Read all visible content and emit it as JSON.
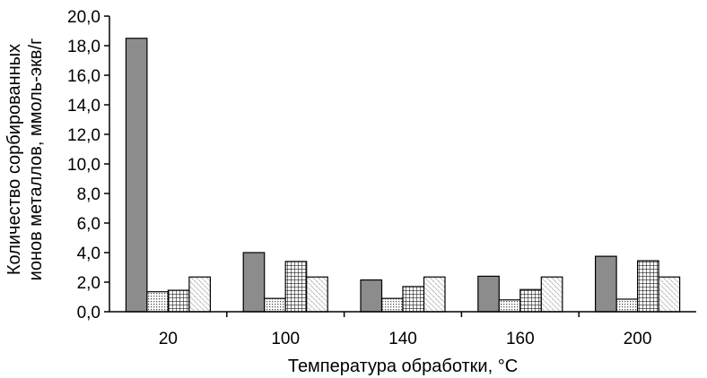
{
  "chart_data": {
    "type": "bar",
    "title": "",
    "xlabel": "Температура обработки, °C",
    "ylabel": [
      "Количество сорбированных",
      "ионов металлов, ммоль-экв/г"
    ],
    "categories": [
      "20",
      "100",
      "140",
      "160",
      "200"
    ],
    "series": [
      {
        "values": [
          18.5,
          4.0,
          2.15,
          2.4,
          3.75
        ],
        "fill": "#8c8c8c",
        "pattern": "solid"
      },
      {
        "values": [
          1.35,
          0.9,
          0.9,
          0.8,
          0.85
        ],
        "fill": "#ffffff",
        "pattern": "fine-dots"
      },
      {
        "values": [
          1.45,
          3.4,
          1.7,
          1.5,
          3.45
        ],
        "fill": "#ffffff",
        "pattern": "grid"
      },
      {
        "values": [
          2.35,
          2.35,
          2.35,
          2.35,
          2.35
        ],
        "fill": "#ffffff",
        "pattern": "diagonal-dots"
      }
    ],
    "ylim": [
      0,
      20
    ],
    "yticks": [
      "0,0",
      "2,0",
      "4,0",
      "6,0",
      "8,0",
      "10,0",
      "12,0",
      "14,0",
      "16,0",
      "18,0",
      "20,0"
    ],
    "grid": false,
    "legend": "none"
  }
}
